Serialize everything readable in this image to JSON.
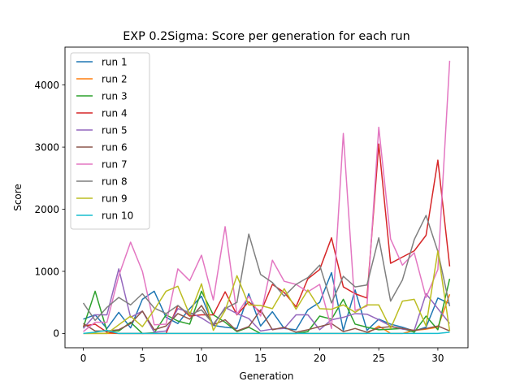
{
  "chart_data": {
    "type": "line",
    "title": "EXP 0.2Sigma: Score per generation for each run",
    "xlabel": "Generation",
    "ylabel": "Score",
    "xlim": [
      -1.55,
      32.55
    ],
    "ylim": [
      -230,
      4610
    ],
    "xticks": [
      0,
      5,
      10,
      15,
      20,
      25,
      30
    ],
    "yticks": [
      0,
      1000,
      2000,
      3000,
      4000
    ],
    "grid": false,
    "legend_position": "upper-left",
    "x": [
      0,
      1,
      2,
      3,
      4,
      5,
      6,
      7,
      8,
      9,
      10,
      11,
      12,
      13,
      14,
      15,
      16,
      17,
      18,
      19,
      20,
      21,
      22,
      23,
      24,
      25,
      26,
      27,
      28,
      29,
      30,
      31
    ],
    "series": [
      {
        "name": "run 1",
        "color": "#1f77b4",
        "values": [
          230,
          300,
          80,
          340,
          90,
          550,
          680,
          260,
          160,
          400,
          600,
          130,
          100,
          80,
          640,
          120,
          350,
          80,
          60,
          380,
          500,
          980,
          50,
          700,
          50,
          230,
          150,
          100,
          40,
          100,
          570,
          480
        ]
      },
      {
        "name": "run 2",
        "color": "#ff7f0e",
        "values": [
          0,
          0,
          0,
          0,
          0,
          0,
          0,
          0,
          0,
          0,
          0,
          0,
          0,
          0,
          0,
          0,
          0,
          0,
          0,
          0,
          0,
          0,
          0,
          0,
          0,
          120,
          0,
          0,
          50,
          70,
          100,
          630
        ]
      },
      {
        "name": "run 3",
        "color": "#2ca02c",
        "values": [
          100,
          680,
          40,
          40,
          180,
          0,
          10,
          300,
          200,
          150,
          680,
          300,
          180,
          30,
          100,
          0,
          0,
          0,
          0,
          30,
          280,
          230,
          550,
          150,
          100,
          60,
          70,
          80,
          20,
          280,
          60,
          880
        ]
      },
      {
        "name": "run 4",
        "color": "#d62728",
        "values": [
          120,
          150,
          20,
          0,
          0,
          0,
          0,
          0,
          450,
          280,
          300,
          300,
          670,
          300,
          510,
          340,
          790,
          660,
          430,
          880,
          1030,
          1540,
          750,
          640,
          570,
          3050,
          1130,
          1230,
          1330,
          1580,
          2790,
          1080
        ]
      },
      {
        "name": "run 5",
        "color": "#9467bd",
        "values": [
          80,
          300,
          300,
          1040,
          260,
          360,
          20,
          40,
          400,
          340,
          250,
          130,
          420,
          320,
          240,
          40,
          70,
          80,
          300,
          300,
          60,
          220,
          260,
          320,
          310,
          220,
          120,
          70,
          50,
          640,
          400,
          160
        ]
      },
      {
        "name": "run 6",
        "color": "#8c564b",
        "values": [
          160,
          40,
          40,
          60,
          160,
          360,
          60,
          120,
          320,
          230,
          450,
          140,
          220,
          40,
          110,
          380,
          60,
          100,
          20,
          60,
          110,
          160,
          30,
          80,
          20,
          90,
          110,
          80,
          50,
          80,
          120,
          40
        ]
      },
      {
        "name": "run 7",
        "color": "#e377c2",
        "values": [
          30,
          180,
          180,
          930,
          1470,
          1000,
          140,
          150,
          1040,
          850,
          1260,
          540,
          1720,
          310,
          600,
          280,
          1180,
          840,
          790,
          670,
          790,
          80,
          3220,
          370,
          440,
          3320,
          1520,
          1100,
          1300,
          580,
          1030,
          4390
        ]
      },
      {
        "name": "run 8",
        "color": "#7f7f7f",
        "values": [
          490,
          210,
          420,
          580,
          460,
          640,
          410,
          320,
          450,
          300,
          380,
          150,
          400,
          500,
          1600,
          950,
          820,
          600,
          790,
          900,
          1100,
          490,
          920,
          750,
          780,
          1540,
          520,
          860,
          1510,
          1900,
          1320,
          440
        ]
      },
      {
        "name": "run 9",
        "color": "#bcbd22",
        "values": [
          0,
          0,
          0,
          140,
          280,
          110,
          380,
          680,
          760,
          300,
          800,
          50,
          370,
          930,
          460,
          450,
          400,
          720,
          390,
          700,
          400,
          390,
          460,
          340,
          460,
          460,
          80,
          520,
          550,
          120,
          1330,
          40
        ]
      },
      {
        "name": "run 10",
        "color": "#17becf",
        "values": [
          0,
          20,
          50,
          0,
          0,
          0,
          0,
          0,
          0,
          0,
          0,
          0,
          0,
          0,
          0,
          0,
          0,
          0,
          0,
          0,
          0,
          0,
          0,
          0,
          0,
          0,
          0,
          0,
          0,
          0,
          0,
          20
        ]
      }
    ]
  }
}
